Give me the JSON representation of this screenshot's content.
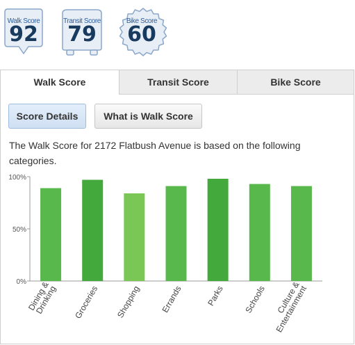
{
  "badges": [
    {
      "label": "Walk Score",
      "value": "92",
      "shape": "walk-pin"
    },
    {
      "label": "Transit Score",
      "value": "79",
      "shape": "transit-bus"
    },
    {
      "label": "Bike Score",
      "value": "60",
      "shape": "bike-gear"
    }
  ],
  "tabs": [
    {
      "label": "Walk Score",
      "active": true
    },
    {
      "label": "Transit Score",
      "active": false
    },
    {
      "label": "Bike Score",
      "active": false
    }
  ],
  "buttons": {
    "score_details": "Score Details",
    "what_is": "What is Walk Score"
  },
  "description": "The Walk Score for 2172 Flatbush Avenue is based on the following categories.",
  "colors": {
    "bar_dark": "#44a93c",
    "bar_mid": "#59b84b",
    "bar_light": "#7ac756",
    "axis": "#999999",
    "badge_fill": "#e8eef6",
    "badge_stroke": "#8aa6c9"
  },
  "chart_data": {
    "type": "bar",
    "categories": [
      "Dining & Drinking",
      "Groceries",
      "Shopping",
      "Errands",
      "Parks",
      "Schools",
      "Culture & Entertainment"
    ],
    "category_lines": [
      [
        "Dining &",
        "Drinking"
      ],
      [
        "Groceries"
      ],
      [
        "Shopping"
      ],
      [
        "Errands"
      ],
      [
        "Parks"
      ],
      [
        "Schools"
      ],
      [
        "Culture &",
        "Entertainment"
      ]
    ],
    "values": [
      89,
      97,
      84,
      91,
      98,
      93,
      91
    ],
    "ylim": [
      0,
      100
    ],
    "yticks": [
      "0%",
      "50%",
      "100%"
    ],
    "grid": false,
    "title": "",
    "xlabel": "",
    "ylabel": ""
  }
}
